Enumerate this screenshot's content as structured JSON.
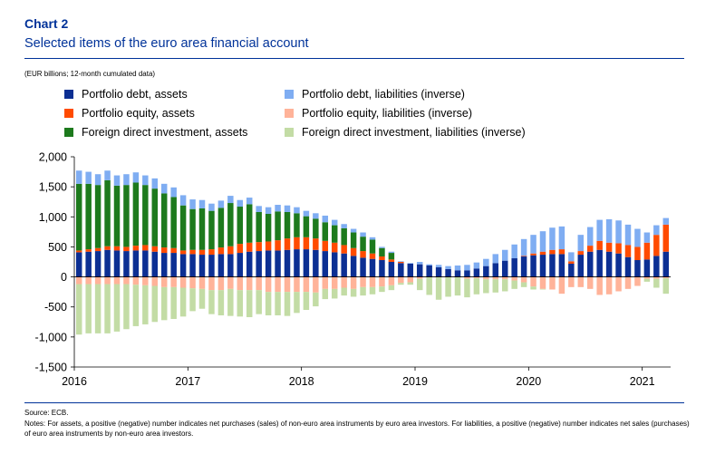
{
  "header": {
    "label": "Chart 2",
    "title": "Selected items of the euro area financial account",
    "unit_note": "(EUR billions; 12-month cumulated data)"
  },
  "footer": {
    "source": "Source: ECB.",
    "notes": "Notes: For assets, a positive (negative) number indicates net purchases (sales) of non-euro area instruments by euro area investors. For liabilities, a positive (negative) number indicates net sales (purchases) of euro area instruments by non-euro area investors."
  },
  "colors": {
    "pd_assets": "#0c2f93",
    "pe_assets": "#ff4b00",
    "fdi_assets": "#1d7a1d",
    "pd_liab": "#7fadf2",
    "pe_liab": "#ffb399",
    "fdi_liab": "#c3dca5"
  },
  "chart_data": {
    "type": "bar",
    "stacked": true,
    "ylim": [
      -1500,
      2000
    ],
    "yticks": [
      -1500,
      -1000,
      -500,
      0,
      500,
      1000,
      1500,
      2000
    ],
    "ytick_labels": [
      "-1,500",
      "-1,000",
      "-500",
      "0",
      "500",
      "1,000",
      "1,500",
      "2,000"
    ],
    "xtick_labels": [
      "2016",
      "2017",
      "2018",
      "2019",
      "2020",
      "2021"
    ],
    "xlabel": "",
    "ylabel": "",
    "grid": false,
    "legend_position": "top",
    "legend": [
      "Portfolio debt, assets",
      "Portfolio equity, assets",
      "Foreign direct investment, assets",
      "Portfolio debt, liabilities (inverse)",
      "Portfolio equity, liabilities (inverse)",
      "Foreign direct investment, liabilities (inverse)"
    ],
    "categories": [
      "2016-01",
      "2016-02",
      "2016-03",
      "2016-04",
      "2016-05",
      "2016-06",
      "2016-07",
      "2016-08",
      "2016-09",
      "2016-10",
      "2016-11",
      "2016-12",
      "2017-01",
      "2017-02",
      "2017-03",
      "2017-04",
      "2017-05",
      "2017-06",
      "2017-07",
      "2017-08",
      "2017-09",
      "2017-10",
      "2017-11",
      "2017-12",
      "2018-01",
      "2018-02",
      "2018-03",
      "2018-04",
      "2018-05",
      "2018-06",
      "2018-07",
      "2018-08",
      "2018-09",
      "2018-10",
      "2018-11",
      "2018-12",
      "2019-01",
      "2019-02",
      "2019-03",
      "2019-04",
      "2019-05",
      "2019-06",
      "2019-07",
      "2019-08",
      "2019-09",
      "2019-10",
      "2019-11",
      "2019-12",
      "2020-01",
      "2020-02",
      "2020-03",
      "2020-04",
      "2020-05",
      "2020-06",
      "2020-07",
      "2020-08",
      "2020-09",
      "2020-10",
      "2020-11",
      "2020-12",
      "2021-01",
      "2021-02",
      "2021-03"
    ],
    "series": [
      {
        "name": "Portfolio debt, assets",
        "color_key": "pd_assets",
        "values": [
          410,
          420,
          430,
          450,
          440,
          430,
          440,
          440,
          420,
          400,
          400,
          380,
          380,
          370,
          370,
          380,
          380,
          400,
          420,
          430,
          440,
          440,
          450,
          460,
          460,
          450,
          430,
          410,
          390,
          350,
          320,
          300,
          280,
          250,
          230,
          220,
          210,
          190,
          160,
          130,
          110,
          110,
          140,
          180,
          230,
          270,
          310,
          340,
          360,
          370,
          380,
          380,
          220,
          370,
          420,
          450,
          420,
          390,
          330,
          280,
          290,
          350,
          420
        ]
      },
      {
        "name": "Portfolio equity, assets",
        "color_key": "pe_assets",
        "values": [
          30,
          40,
          50,
          60,
          70,
          70,
          80,
          90,
          90,
          90,
          80,
          60,
          70,
          80,
          90,
          110,
          130,
          150,
          150,
          150,
          150,
          170,
          190,
          200,
          200,
          190,
          170,
          160,
          140,
          130,
          110,
          90,
          60,
          40,
          20,
          0,
          0,
          0,
          0,
          0,
          0,
          0,
          0,
          0,
          0,
          0,
          0,
          10,
          30,
          50,
          70,
          80,
          40,
          60,
          100,
          150,
          150,
          170,
          200,
          220,
          280,
          350,
          450
        ]
      },
      {
        "name": "Foreign direct investment, assets",
        "color_key": "fdi_assets",
        "values": [
          1110,
          1090,
          1050,
          1100,
          1010,
          1030,
          1050,
          1000,
          960,
          900,
          850,
          750,
          680,
          690,
          640,
          660,
          720,
          620,
          640,
          500,
          460,
          480,
          440,
          400,
          350,
          330,
          310,
          290,
          280,
          260,
          240,
          230,
          140,
          110,
          0,
          0,
          0,
          0,
          0,
          0,
          0,
          0,
          0,
          0,
          0,
          0,
          0,
          0,
          0,
          0,
          0,
          0,
          0,
          0,
          0,
          0,
          0,
          0,
          0,
          0,
          0,
          0,
          0
        ]
      },
      {
        "name": "Portfolio debt, liabilities (inverse)",
        "color_key": "pd_liab",
        "values": [
          220,
          200,
          180,
          160,
          170,
          180,
          170,
          160,
          170,
          160,
          160,
          170,
          160,
          140,
          120,
          120,
          120,
          110,
          110,
          100,
          110,
          110,
          110,
          100,
          90,
          90,
          110,
          90,
          70,
          60,
          70,
          40,
          20,
          20,
          10,
          10,
          40,
          20,
          40,
          50,
          80,
          90,
          100,
          120,
          150,
          180,
          230,
          280,
          310,
          340,
          370,
          380,
          150,
          270,
          310,
          350,
          390,
          380,
          340,
          300,
          170,
          160,
          110
        ]
      },
      {
        "name": "Portfolio equity, liabilities (inverse)",
        "color_key": "pe_liab",
        "values": [
          -120,
          -120,
          -120,
          -120,
          -120,
          -120,
          -130,
          -140,
          -150,
          -170,
          -170,
          -180,
          -190,
          -200,
          -220,
          -220,
          -200,
          -220,
          -220,
          -220,
          -250,
          -250,
          -250,
          -250,
          -250,
          -260,
          -200,
          -200,
          -180,
          -200,
          -170,
          -170,
          -160,
          -140,
          -100,
          -90,
          -30,
          0,
          0,
          0,
          0,
          -30,
          -20,
          -40,
          -40,
          -40,
          -60,
          -90,
          -160,
          -200,
          -210,
          -280,
          -170,
          -170,
          -200,
          -300,
          -290,
          -240,
          -200,
          -150,
          -30,
          -30,
          -20
        ]
      },
      {
        "name": "Foreign direct investment, liabilities (inverse)",
        "color_key": "fdi_liab",
        "values": [
          -840,
          -820,
          -820,
          -820,
          -790,
          -750,
          -690,
          -650,
          -600,
          -550,
          -530,
          -480,
          -380,
          -330,
          -400,
          -420,
          -450,
          -440,
          -450,
          -400,
          -390,
          -390,
          -400,
          -350,
          -300,
          -230,
          -170,
          -160,
          -130,
          -130,
          -140,
          -120,
          -90,
          -80,
          -30,
          -40,
          -190,
          -300,
          -380,
          -330,
          -310,
          -310,
          -270,
          -230,
          -220,
          -200,
          -140,
          -80,
          -50,
          -10,
          0,
          0,
          0,
          0,
          0,
          0,
          0,
          0,
          0,
          0,
          -50,
          -150,
          -260
        ]
      }
    ]
  }
}
